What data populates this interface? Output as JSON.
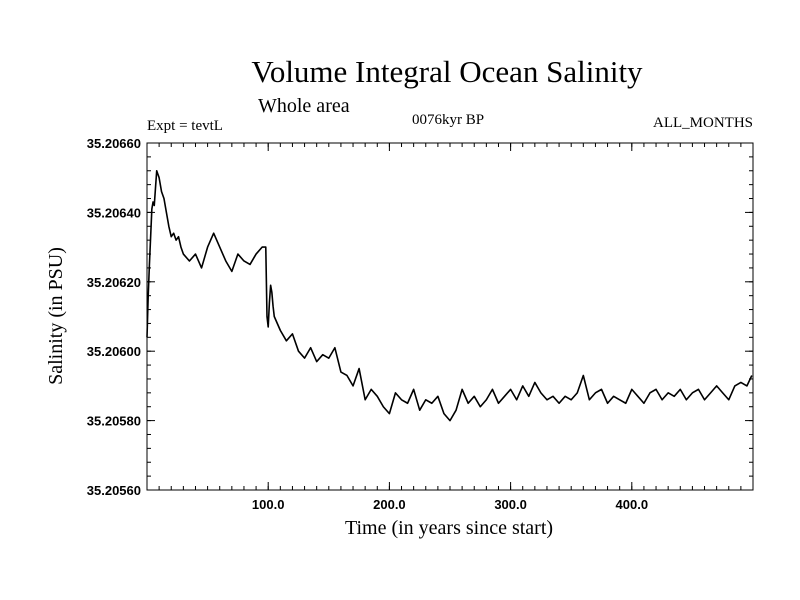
{
  "chart_data": {
    "type": "line",
    "title": "Volume Integral Ocean Salinity",
    "subtitle": "Whole area",
    "annotations": {
      "left": "Expt = tevtL",
      "center": "0076kyr BP",
      "right": "ALL_MONTHS"
    },
    "xlabel": "Time (in years since start)",
    "ylabel": "Salinity (in PSU)",
    "xlim": [
      0,
      500
    ],
    "ylim": [
      35.2056,
      35.2066
    ],
    "xticks": [
      100,
      200,
      300,
      400
    ],
    "xtick_labels": [
      "100.0",
      "200.0",
      "300.0",
      "400.0"
    ],
    "yticks": [
      35.2056,
      35.2058,
      35.206,
      35.2062,
      35.2064,
      35.2066
    ],
    "ytick_labels": [
      "35.20560",
      "35.20580",
      "35.20600",
      "35.20620",
      "35.20640",
      "35.20660"
    ],
    "grid": false,
    "line_color": "#000000",
    "series": [
      {
        "x": [
          0,
          1,
          2,
          3,
          4,
          5,
          6,
          7,
          8,
          9,
          10,
          12,
          14,
          16,
          18,
          20,
          22,
          24,
          26,
          28,
          30,
          35,
          40,
          45,
          50,
          55,
          60,
          65,
          70,
          75,
          80,
          85,
          90,
          95,
          98,
          99,
          100,
          101,
          102,
          103,
          104,
          105,
          110,
          115,
          120,
          125,
          130,
          135,
          140,
          145,
          150,
          155,
          160,
          165,
          170,
          175,
          180,
          185,
          190,
          195,
          200,
          205,
          210,
          215,
          220,
          225,
          230,
          235,
          240,
          245,
          250,
          255,
          260,
          265,
          270,
          275,
          280,
          285,
          290,
          295,
          300,
          305,
          310,
          315,
          320,
          325,
          330,
          335,
          340,
          345,
          350,
          355,
          360,
          365,
          370,
          375,
          380,
          385,
          390,
          395,
          400,
          405,
          410,
          415,
          420,
          425,
          430,
          435,
          440,
          445,
          450,
          455,
          460,
          465,
          470,
          475,
          480,
          485,
          490,
          495,
          499
        ],
        "y": [
          35.20604,
          35.20616,
          35.20625,
          35.20633,
          35.20641,
          35.20643,
          35.20642,
          35.20647,
          35.20652,
          35.20651,
          35.2065,
          35.20646,
          35.20644,
          35.2064,
          35.20636,
          35.20633,
          35.20634,
          35.20632,
          35.20633,
          35.2063,
          35.20628,
          35.20626,
          35.20628,
          35.20624,
          35.2063,
          35.20634,
          35.2063,
          35.20626,
          35.20623,
          35.20628,
          35.20626,
          35.20625,
          35.20628,
          35.2063,
          35.2063,
          35.2061,
          35.20607,
          35.20614,
          35.20619,
          35.20617,
          35.20613,
          35.2061,
          35.20606,
          35.20603,
          35.20605,
          35.206,
          35.20598,
          35.20601,
          35.20597,
          35.20599,
          35.20598,
          35.20601,
          35.20594,
          35.20593,
          35.2059,
          35.20595,
          35.20586,
          35.20589,
          35.20587,
          35.20584,
          35.20582,
          35.20588,
          35.20586,
          35.20585,
          35.20589,
          35.20583,
          35.20586,
          35.20585,
          35.20587,
          35.20582,
          35.2058,
          35.20583,
          35.20589,
          35.20585,
          35.20587,
          35.20584,
          35.20586,
          35.20589,
          35.20585,
          35.20587,
          35.20589,
          35.20586,
          35.2059,
          35.20587,
          35.20591,
          35.20588,
          35.20586,
          35.20587,
          35.20585,
          35.20587,
          35.20586,
          35.20588,
          35.20593,
          35.20586,
          35.20588,
          35.20589,
          35.20585,
          35.20587,
          35.20586,
          35.20585,
          35.20589,
          35.20587,
          35.20585,
          35.20588,
          35.20589,
          35.20586,
          35.20588,
          35.20587,
          35.20589,
          35.20586,
          35.20588,
          35.20589,
          35.20586,
          35.20588,
          35.2059,
          35.20588,
          35.20586,
          35.2059,
          35.20591,
          35.2059,
          35.20593
        ]
      }
    ]
  }
}
